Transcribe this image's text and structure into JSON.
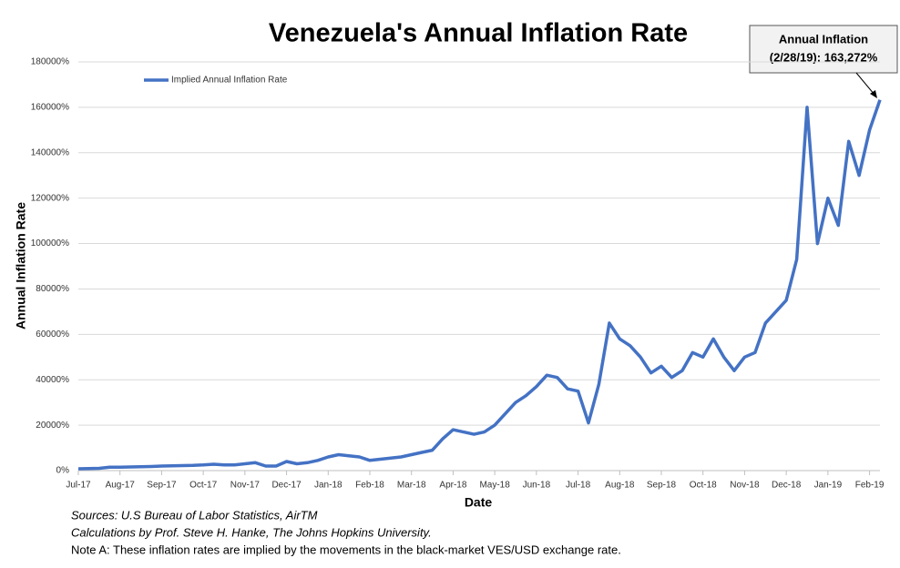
{
  "chart_data": {
    "type": "line",
    "title": "Venezuela's Annual Inflation Rate",
    "x_label": "Date",
    "y_label": "Annual Inflation Rate",
    "categories": [
      "Jul-17",
      null,
      null,
      null,
      "Aug-17",
      null,
      null,
      null,
      "Sep-17",
      null,
      null,
      null,
      "Oct-17",
      null,
      null,
      null,
      "Nov-17",
      null,
      null,
      null,
      "Dec-17",
      null,
      null,
      null,
      "Jan-18",
      null,
      null,
      null,
      "Feb-18",
      null,
      null,
      null,
      "Mar-18",
      null,
      null,
      null,
      "Apr-18",
      null,
      null,
      null,
      "May-18",
      null,
      null,
      null,
      "Jun-18",
      null,
      null,
      null,
      "Jul-18",
      null,
      null,
      null,
      "Aug-18",
      null,
      null,
      null,
      "Sep-18",
      null,
      null,
      null,
      "Oct-18",
      null,
      null,
      null,
      "Nov-18",
      null,
      null,
      null,
      "Dec-18",
      null,
      null,
      null,
      "Jan-19",
      null,
      null,
      null,
      "Feb-19",
      null
    ],
    "series": [
      {
        "name": "Implied Annual Inflation Rate",
        "color": "#4472c4",
        "values": [
          800,
          900,
          1000,
          1500,
          1500,
          1600,
          1700,
          1800,
          2000,
          2100,
          2200,
          2300,
          2500,
          2800,
          2500,
          2500,
          3000,
          3500,
          2000,
          2000,
          4000,
          3000,
          3500,
          4500,
          6000,
          7000,
          6500,
          6000,
          4500,
          5000,
          5500,
          6000,
          7000,
          8000,
          9000,
          14000,
          18000,
          17000,
          16000,
          17000,
          20000,
          25000,
          30000,
          33000,
          37000,
          42000,
          41000,
          36000,
          35000,
          21000,
          38000,
          65000,
          58000,
          55000,
          50000,
          43000,
          46000,
          41000,
          44000,
          52000,
          50000,
          58000,
          50000,
          44000,
          50000,
          52000,
          65000,
          70000,
          75000,
          93000,
          160000,
          100000,
          120000,
          108000,
          145000,
          130000,
          150000,
          163272
        ]
      }
    ],
    "ylim": [
      0,
      180000
    ],
    "yticks": [
      {
        "value": 0,
        "label": "0%"
      },
      {
        "value": 20000,
        "label": "20000%"
      },
      {
        "value": 40000,
        "label": "40000%"
      },
      {
        "value": 60000,
        "label": "60000%"
      },
      {
        "value": 80000,
        "label": "80000%"
      },
      {
        "value": 100000,
        "label": "100000%"
      },
      {
        "value": 120000,
        "label": "120000%"
      },
      {
        "value": 140000,
        "label": "140000%"
      },
      {
        "value": 160000,
        "label": "160000%"
      },
      {
        "value": 180000,
        "label": "180000%"
      }
    ],
    "grid": true,
    "legend": "top-left",
    "annotation": [
      "Annual Inflation",
      "(2/28/19): 163,272%"
    ],
    "notes": [
      "Sources: U.S Bureau of Labor Statistics, AirTM",
      "Calculations by Prof. Steve H. Hanke, The Johns Hopkins University.",
      "Note A: These inflation rates are implied by the movements in the black-market VES/USD exchange rate."
    ]
  }
}
